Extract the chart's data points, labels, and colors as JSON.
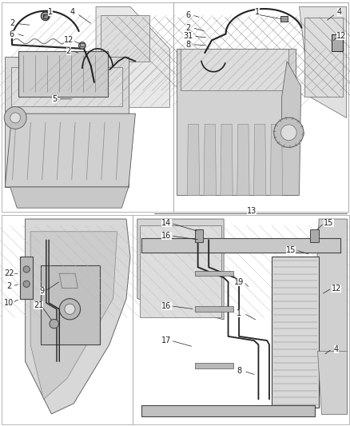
{
  "bg": "#f0f0f0",
  "white": "#ffffff",
  "dark": "#222222",
  "mid": "#666666",
  "light": "#aaaaaa",
  "very_light": "#dddddd",
  "fig_width": 4.38,
  "fig_height": 5.33,
  "dpi": 100,
  "top_labels": [
    {
      "n": "1",
      "xf": 0.285,
      "yf": 0.952
    },
    {
      "n": "4",
      "xf": 0.415,
      "yf": 0.952
    },
    {
      "n": "2",
      "xf": 0.06,
      "yf": 0.895
    },
    {
      "n": "6",
      "xf": 0.06,
      "yf": 0.845
    },
    {
      "n": "12",
      "xf": 0.385,
      "yf": 0.815
    },
    {
      "n": "2",
      "xf": 0.39,
      "yf": 0.77
    },
    {
      "n": "5",
      "xf": 0.31,
      "yf": 0.548
    }
  ],
  "tr_labels": [
    {
      "n": "1",
      "xf": 0.72,
      "yf": 0.952
    },
    {
      "n": "6",
      "xf": 0.545,
      "yf": 0.935
    },
    {
      "n": "4",
      "xf": 0.47,
      "yf": 0.952
    },
    {
      "n": "2",
      "xf": 0.53,
      "yf": 0.875
    },
    {
      "n": "31",
      "xf": 0.53,
      "yf": 0.84
    },
    {
      "n": "8",
      "xf": 0.53,
      "yf": 0.8
    },
    {
      "n": "12",
      "xf": 0.965,
      "yf": 0.84
    }
  ],
  "bl_labels": [
    {
      "n": "22",
      "xf": 0.058,
      "yf": 0.72
    },
    {
      "n": "2",
      "xf": 0.058,
      "yf": 0.66
    },
    {
      "n": "10",
      "xf": 0.058,
      "yf": 0.58
    },
    {
      "n": "9",
      "xf": 0.31,
      "yf": 0.635
    },
    {
      "n": "21",
      "xf": 0.28,
      "yf": 0.57
    }
  ],
  "br_labels": [
    {
      "n": "13",
      "xf": 0.72,
      "yf": 0.518
    },
    {
      "n": "14",
      "xf": 0.43,
      "yf": 0.5
    },
    {
      "n": "15",
      "xf": 0.945,
      "yf": 0.5
    },
    {
      "n": "16",
      "xf": 0.43,
      "yf": 0.456
    },
    {
      "n": "15",
      "xf": 0.76,
      "yf": 0.43
    },
    {
      "n": "19",
      "xf": 0.59,
      "yf": 0.36
    },
    {
      "n": "16",
      "xf": 0.45,
      "yf": 0.295
    },
    {
      "n": "1",
      "xf": 0.635,
      "yf": 0.28
    },
    {
      "n": "17",
      "xf": 0.428,
      "yf": 0.215
    },
    {
      "n": "8",
      "xf": 0.59,
      "yf": 0.142
    },
    {
      "n": "12",
      "xf": 0.95,
      "yf": 0.35
    },
    {
      "n": "4",
      "xf": 0.95,
      "yf": 0.185
    },
    {
      "n": "15",
      "xf": 0.95,
      "yf": 0.5
    }
  ]
}
